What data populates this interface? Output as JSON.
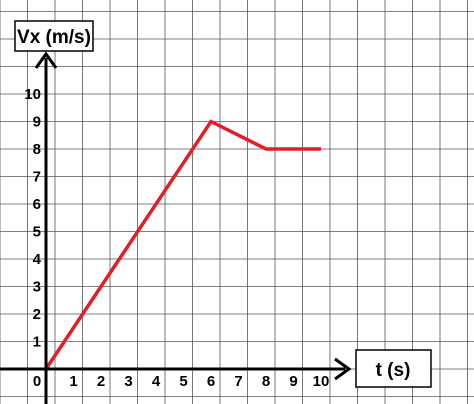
{
  "chart_data": {
    "type": "line",
    "ylabel": "Vx (m/s)",
    "xlabel": "t (s)",
    "xlim": [
      0,
      10
    ],
    "ylim": [
      0,
      10
    ],
    "grid": true,
    "x_ticks": [
      "0",
      "1",
      "2",
      "3",
      "4",
      "5",
      "6",
      "7",
      "8",
      "9",
      "10"
    ],
    "y_ticks": [
      "1",
      "2",
      "3",
      "4",
      "5",
      "6",
      "7",
      "8",
      "9",
      "10"
    ],
    "series": [
      {
        "color": "#e41e26",
        "x": [
          0,
          6,
          8,
          10
        ],
        "y": [
          0,
          9,
          8,
          8
        ]
      }
    ]
  }
}
